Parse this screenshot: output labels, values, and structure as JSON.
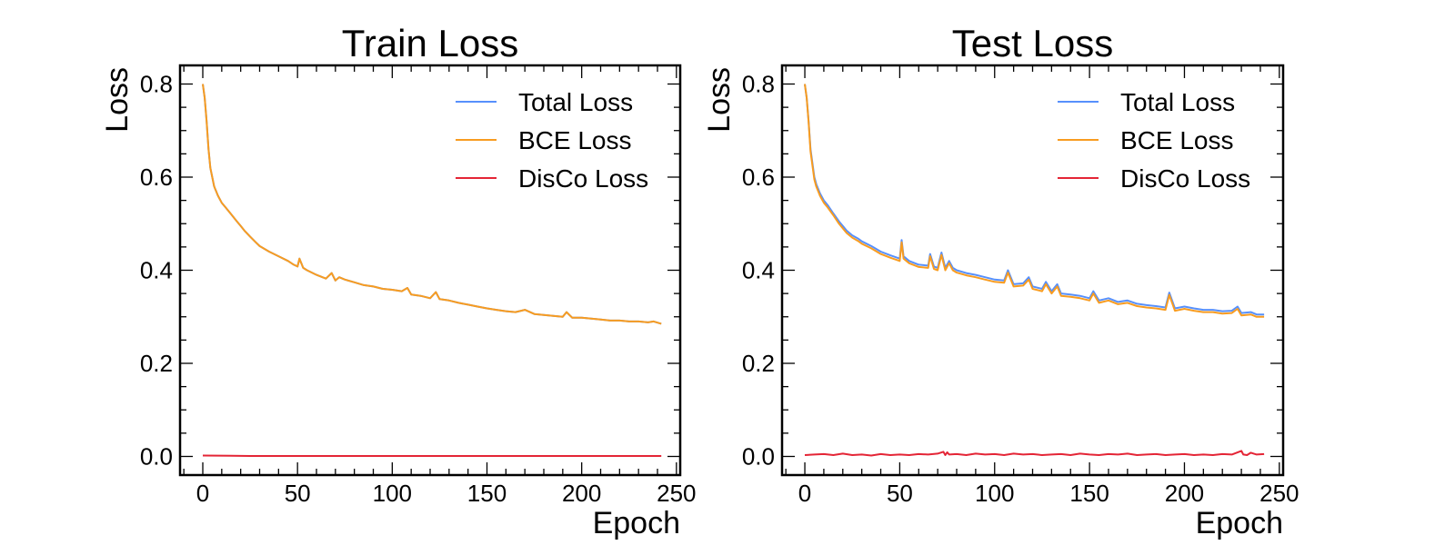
{
  "chart_data": [
    {
      "type": "line",
      "title": "Train Loss",
      "xlabel": "Epoch",
      "ylabel": "Loss",
      "xlim": [
        -12,
        252
      ],
      "ylim": [
        -0.04,
        0.84
      ],
      "xticks": [
        0,
        50,
        100,
        150,
        200,
        250
      ],
      "yticks": [
        0.0,
        0.2,
        0.4,
        0.6,
        0.8
      ],
      "xtick_labels": [
        "0",
        "50",
        "100",
        "150",
        "200",
        "250"
      ],
      "ytick_labels": [
        "0.0",
        "0.2",
        "0.4",
        "0.6",
        "0.8"
      ],
      "grid": false,
      "legend_position": "top-right",
      "series": [
        {
          "name": "Total Loss",
          "color": "#5790fc",
          "x": [
            0,
            1,
            2,
            3,
            4,
            5,
            6,
            8,
            10,
            12,
            15,
            18,
            20,
            22,
            25,
            28,
            30,
            35,
            40,
            45,
            48,
            50,
            51,
            53,
            55,
            60,
            65,
            68,
            70,
            72,
            75,
            80,
            85,
            90,
            95,
            100,
            105,
            108,
            110,
            115,
            120,
            123,
            125,
            130,
            135,
            140,
            145,
            150,
            155,
            160,
            165,
            170,
            175,
            180,
            185,
            190,
            192,
            195,
            200,
            205,
            210,
            215,
            220,
            225,
            230,
            235,
            238,
            242
          ],
          "values": [
            0.8,
            0.77,
            0.72,
            0.66,
            0.62,
            0.6,
            0.58,
            0.56,
            0.545,
            0.535,
            0.52,
            0.505,
            0.495,
            0.485,
            0.472,
            0.46,
            0.452,
            0.44,
            0.43,
            0.42,
            0.412,
            0.408,
            0.425,
            0.405,
            0.4,
            0.39,
            0.382,
            0.394,
            0.378,
            0.385,
            0.38,
            0.374,
            0.368,
            0.365,
            0.36,
            0.358,
            0.355,
            0.362,
            0.348,
            0.345,
            0.34,
            0.353,
            0.338,
            0.335,
            0.33,
            0.326,
            0.322,
            0.318,
            0.315,
            0.312,
            0.31,
            0.315,
            0.306,
            0.304,
            0.302,
            0.3,
            0.31,
            0.298,
            0.298,
            0.296,
            0.294,
            0.292,
            0.292,
            0.29,
            0.29,
            0.288,
            0.29,
            0.285
          ]
        },
        {
          "name": "BCE Loss",
          "color": "#f89c20",
          "x": [
            0,
            1,
            2,
            3,
            4,
            5,
            6,
            8,
            10,
            12,
            15,
            18,
            20,
            22,
            25,
            28,
            30,
            35,
            40,
            45,
            48,
            50,
            51,
            53,
            55,
            60,
            65,
            68,
            70,
            72,
            75,
            80,
            85,
            90,
            95,
            100,
            105,
            108,
            110,
            115,
            120,
            123,
            125,
            130,
            135,
            140,
            145,
            150,
            155,
            160,
            165,
            170,
            175,
            180,
            185,
            190,
            192,
            195,
            200,
            205,
            210,
            215,
            220,
            225,
            230,
            235,
            238,
            242
          ],
          "values": [
            0.8,
            0.77,
            0.72,
            0.66,
            0.62,
            0.6,
            0.58,
            0.56,
            0.545,
            0.535,
            0.52,
            0.505,
            0.495,
            0.485,
            0.472,
            0.46,
            0.452,
            0.44,
            0.43,
            0.42,
            0.412,
            0.408,
            0.425,
            0.405,
            0.4,
            0.39,
            0.382,
            0.394,
            0.378,
            0.385,
            0.38,
            0.374,
            0.368,
            0.365,
            0.36,
            0.358,
            0.355,
            0.362,
            0.348,
            0.345,
            0.34,
            0.353,
            0.338,
            0.335,
            0.33,
            0.326,
            0.322,
            0.318,
            0.315,
            0.312,
            0.31,
            0.315,
            0.306,
            0.304,
            0.302,
            0.3,
            0.31,
            0.298,
            0.298,
            0.296,
            0.294,
            0.292,
            0.292,
            0.29,
            0.29,
            0.288,
            0.29,
            0.285
          ]
        },
        {
          "name": "DisCo Loss",
          "color": "#e42536",
          "x": [
            0,
            25,
            50,
            75,
            100,
            125,
            150,
            175,
            200,
            225,
            242
          ],
          "values": [
            0.002,
            0.001,
            0.001,
            0.001,
            0.001,
            0.001,
            0.001,
            0.001,
            0.001,
            0.001,
            0.001
          ]
        }
      ]
    },
    {
      "type": "line",
      "title": "Test Loss",
      "xlabel": "Epoch",
      "ylabel": "Loss",
      "xlim": [
        -12,
        252
      ],
      "ylim": [
        -0.04,
        0.84
      ],
      "xticks": [
        0,
        50,
        100,
        150,
        200,
        250
      ],
      "yticks": [
        0.0,
        0.2,
        0.4,
        0.6,
        0.8
      ],
      "xtick_labels": [
        "0",
        "50",
        "100",
        "150",
        "200",
        "250"
      ],
      "ytick_labels": [
        "0.0",
        "0.2",
        "0.4",
        "0.6",
        "0.8"
      ],
      "grid": false,
      "legend_position": "top-right",
      "series": [
        {
          "name": "Total Loss",
          "color": "#5790fc",
          "x": [
            0,
            1,
            2,
            3,
            4,
            5,
            6,
            8,
            10,
            12,
            15,
            18,
            20,
            22,
            25,
            28,
            30,
            35,
            40,
            45,
            50,
            51,
            52,
            55,
            60,
            65,
            66,
            68,
            70,
            72,
            74,
            76,
            78,
            80,
            85,
            90,
            95,
            100,
            105,
            107,
            110,
            115,
            118,
            120,
            125,
            127,
            130,
            133,
            135,
            140,
            145,
            150,
            152,
            155,
            160,
            165,
            170,
            175,
            180,
            185,
            190,
            192,
            195,
            200,
            205,
            210,
            215,
            220,
            225,
            228,
            230,
            235,
            238,
            242
          ],
          "values": [
            0.8,
            0.77,
            0.72,
            0.66,
            0.63,
            0.6,
            0.585,
            0.565,
            0.55,
            0.54,
            0.522,
            0.505,
            0.495,
            0.485,
            0.475,
            0.468,
            0.462,
            0.452,
            0.44,
            0.432,
            0.425,
            0.465,
            0.43,
            0.42,
            0.412,
            0.41,
            0.435,
            0.408,
            0.405,
            0.438,
            0.405,
            0.42,
            0.405,
            0.4,
            0.394,
            0.39,
            0.385,
            0.38,
            0.378,
            0.4,
            0.37,
            0.372,
            0.385,
            0.365,
            0.36,
            0.375,
            0.355,
            0.37,
            0.35,
            0.348,
            0.345,
            0.34,
            0.355,
            0.335,
            0.34,
            0.332,
            0.335,
            0.328,
            0.325,
            0.323,
            0.32,
            0.352,
            0.318,
            0.322,
            0.318,
            0.315,
            0.315,
            0.312,
            0.313,
            0.322,
            0.308,
            0.31,
            0.305,
            0.305
          ]
        },
        {
          "name": "BCE Loss",
          "color": "#f89c20",
          "x": [
            0,
            1,
            2,
            3,
            4,
            5,
            6,
            8,
            10,
            12,
            15,
            18,
            20,
            22,
            25,
            28,
            30,
            35,
            40,
            45,
            50,
            51,
            52,
            55,
            60,
            65,
            66,
            68,
            70,
            72,
            74,
            76,
            78,
            80,
            85,
            90,
            95,
            100,
            105,
            107,
            110,
            115,
            118,
            120,
            125,
            127,
            130,
            133,
            135,
            140,
            145,
            150,
            152,
            155,
            160,
            165,
            170,
            175,
            180,
            185,
            190,
            192,
            195,
            200,
            205,
            210,
            215,
            220,
            225,
            228,
            230,
            235,
            238,
            242
          ],
          "values": [
            0.8,
            0.77,
            0.718,
            0.655,
            0.625,
            0.595,
            0.58,
            0.56,
            0.545,
            0.535,
            0.518,
            0.5,
            0.49,
            0.48,
            0.47,
            0.463,
            0.457,
            0.447,
            0.435,
            0.427,
            0.42,
            0.46,
            0.425,
            0.415,
            0.407,
            0.405,
            0.43,
            0.403,
            0.4,
            0.433,
            0.4,
            0.415,
            0.4,
            0.395,
            0.389,
            0.385,
            0.38,
            0.375,
            0.373,
            0.395,
            0.365,
            0.367,
            0.38,
            0.36,
            0.355,
            0.37,
            0.35,
            0.365,
            0.345,
            0.343,
            0.34,
            0.335,
            0.35,
            0.33,
            0.335,
            0.327,
            0.33,
            0.323,
            0.32,
            0.318,
            0.315,
            0.347,
            0.313,
            0.317,
            0.313,
            0.31,
            0.31,
            0.307,
            0.308,
            0.317,
            0.303,
            0.305,
            0.3,
            0.3
          ]
        },
        {
          "name": "DisCo Loss",
          "color": "#e42536",
          "x": [
            0,
            5,
            10,
            15,
            20,
            25,
            30,
            35,
            40,
            45,
            50,
            55,
            60,
            65,
            70,
            73,
            74,
            75,
            76,
            80,
            85,
            90,
            95,
            100,
            105,
            110,
            115,
            120,
            125,
            130,
            135,
            140,
            145,
            150,
            155,
            160,
            165,
            170,
            175,
            180,
            185,
            190,
            195,
            200,
            205,
            210,
            215,
            220,
            225,
            230,
            231,
            233,
            235,
            238,
            242
          ],
          "values": [
            0.003,
            0.004,
            0.005,
            0.003,
            0.006,
            0.003,
            0.004,
            0.002,
            0.005,
            0.003,
            0.004,
            0.003,
            0.005,
            0.004,
            0.006,
            0.01,
            0.003,
            0.009,
            0.004,
            0.005,
            0.003,
            0.006,
            0.004,
            0.005,
            0.003,
            0.006,
            0.004,
            0.005,
            0.003,
            0.004,
            0.005,
            0.003,
            0.006,
            0.004,
            0.003,
            0.005,
            0.004,
            0.006,
            0.003,
            0.004,
            0.005,
            0.003,
            0.004,
            0.005,
            0.003,
            0.004,
            0.003,
            0.005,
            0.004,
            0.012,
            0.004,
            0.003,
            0.008,
            0.004,
            0.005
          ]
        }
      ]
    }
  ]
}
